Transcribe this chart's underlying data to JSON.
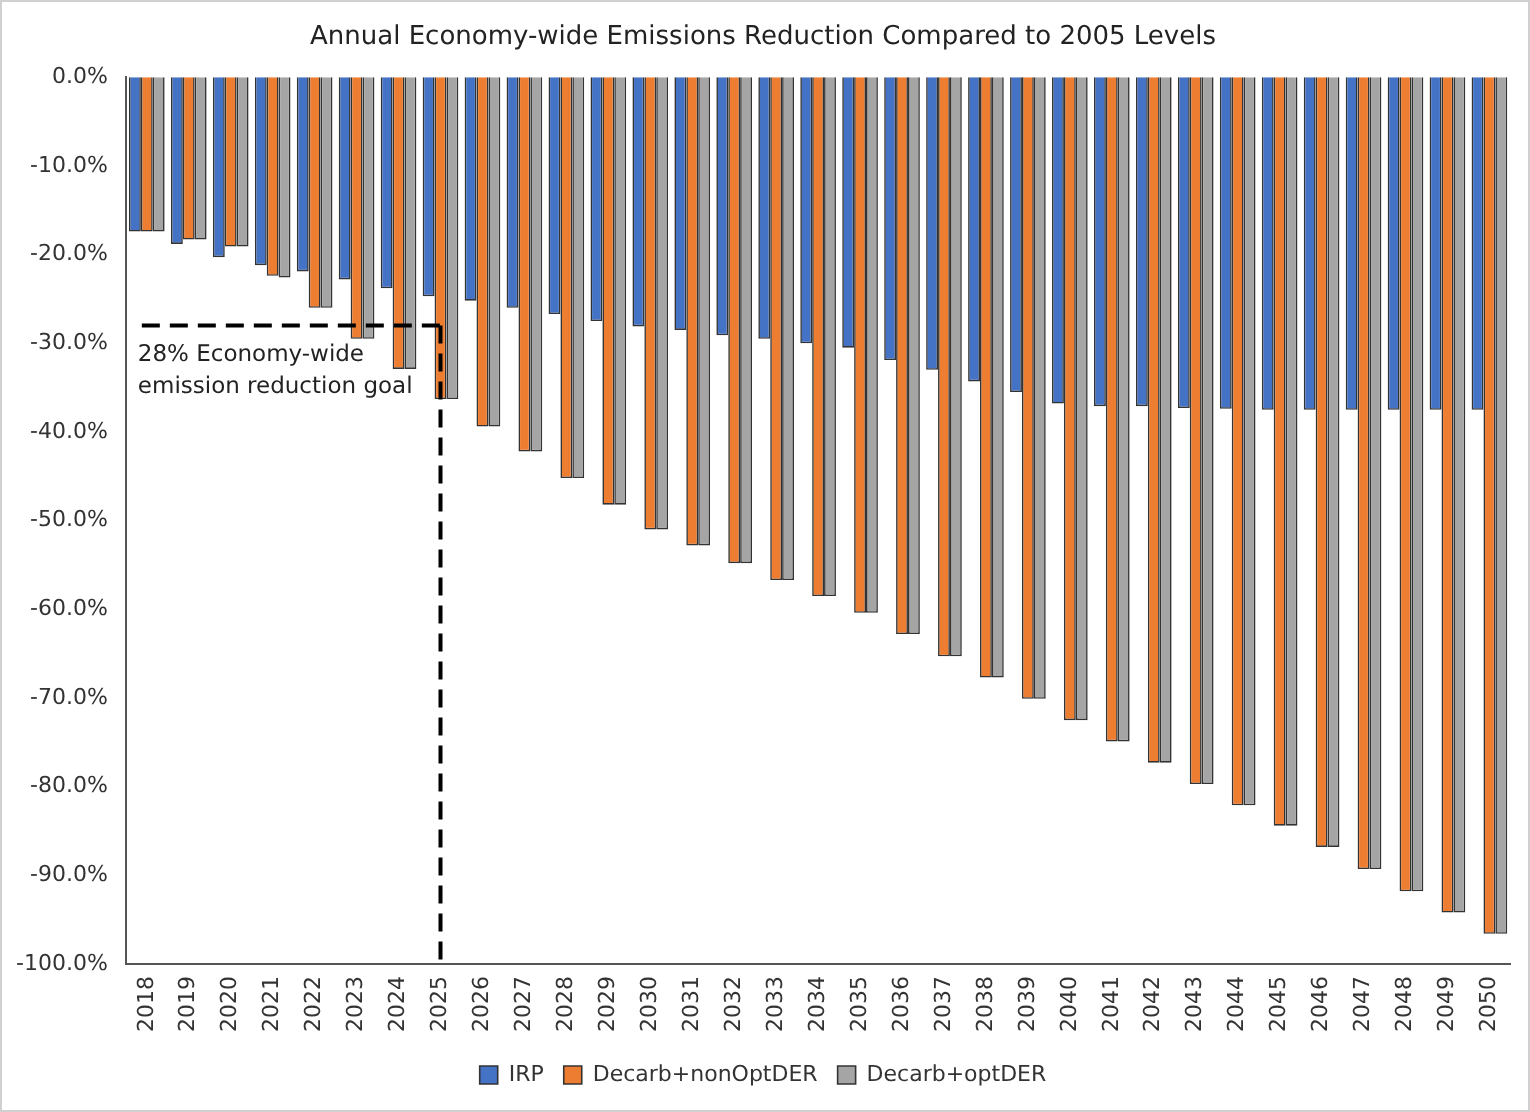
{
  "chart_data": {
    "type": "bar",
    "title": "Annual Economy-wide Emissions Reduction Compared to 2005 Levels",
    "categories": [
      "2018",
      "2019",
      "2020",
      "2021",
      "2022",
      "2023",
      "2024",
      "2025",
      "2026",
      "2027",
      "2028",
      "2029",
      "2030",
      "2031",
      "2032",
      "2033",
      "2034",
      "2035",
      "2036",
      "2037",
      "2038",
      "2039",
      "2040",
      "2041",
      "2042",
      "2043",
      "2044",
      "2045",
      "2046",
      "2047",
      "2048",
      "2049",
      "2050"
    ],
    "series": [
      {
        "name": "IRP",
        "color": "#4472c4",
        "values": [
          -17.4,
          -18.8,
          -20.3,
          -21.2,
          -21.9,
          -22.8,
          -23.8,
          -24.7,
          -25.2,
          -26.0,
          -26.7,
          -27.5,
          -28.1,
          -28.5,
          -29.1,
          -29.5,
          -30.0,
          -30.5,
          -31.9,
          -33.0,
          -34.3,
          -35.5,
          -36.8,
          -37.1,
          -37.1,
          -37.3,
          -37.4,
          -37.5,
          -37.5,
          -37.5,
          -37.5,
          -37.5,
          -37.5
        ]
      },
      {
        "name": "Decarb+nonOptDER",
        "color": "#ed7d31",
        "values": [
          -17.4,
          -18.3,
          -19.1,
          -22.4,
          -26.0,
          -29.5,
          -32.9,
          -36.3,
          -39.4,
          -42.2,
          -45.2,
          -48.2,
          -51.0,
          -52.8,
          -54.8,
          -56.7,
          -58.5,
          -60.4,
          -62.8,
          -65.3,
          -67.7,
          -70.1,
          -72.5,
          -74.9,
          -77.3,
          -79.7,
          -82.1,
          -84.4,
          -86.8,
          -89.3,
          -91.8,
          -94.2,
          -96.6
        ]
      },
      {
        "name": "Decarb+optDER",
        "color": "#a5a5a5",
        "values": [
          -17.4,
          -18.3,
          -19.1,
          -22.6,
          -26.0,
          -29.5,
          -32.9,
          -36.3,
          -39.4,
          -42.2,
          -45.2,
          -48.2,
          -51.0,
          -52.8,
          -54.8,
          -56.7,
          -58.5,
          -60.4,
          -62.8,
          -65.3,
          -67.7,
          -70.1,
          -72.5,
          -74.9,
          -77.3,
          -79.7,
          -82.1,
          -84.4,
          -86.8,
          -89.3,
          -91.8,
          -94.2,
          -96.6
        ]
      }
    ],
    "ylim": [
      -100,
      0
    ],
    "yticks": [
      {
        "value": 0,
        "label": "0.0%"
      },
      {
        "value": -10,
        "label": "-10.0%"
      },
      {
        "value": -20,
        "label": "-20.0%"
      },
      {
        "value": -30,
        "label": "-30.0%"
      },
      {
        "value": -40,
        "label": "-40.0%"
      },
      {
        "value": -50,
        "label": "-50.0%"
      },
      {
        "value": -60,
        "label": "-60.0%"
      },
      {
        "value": -70,
        "label": "-70.0%"
      },
      {
        "value": -80,
        "label": "-80.0%"
      },
      {
        "value": -90,
        "label": "-90.0%"
      },
      {
        "value": -100,
        "label": "-100.0%"
      }
    ],
    "ref_lines": [
      {
        "axis": "y",
        "value": -28,
        "label": "28% Economy-wide emission reduction goal",
        "color": "#000000",
        "line_style": "dashed"
      },
      {
        "axis": "x",
        "value": "2025",
        "color": "#000000",
        "line_style": "dashed"
      }
    ],
    "grid": false,
    "legend": "bottom"
  }
}
